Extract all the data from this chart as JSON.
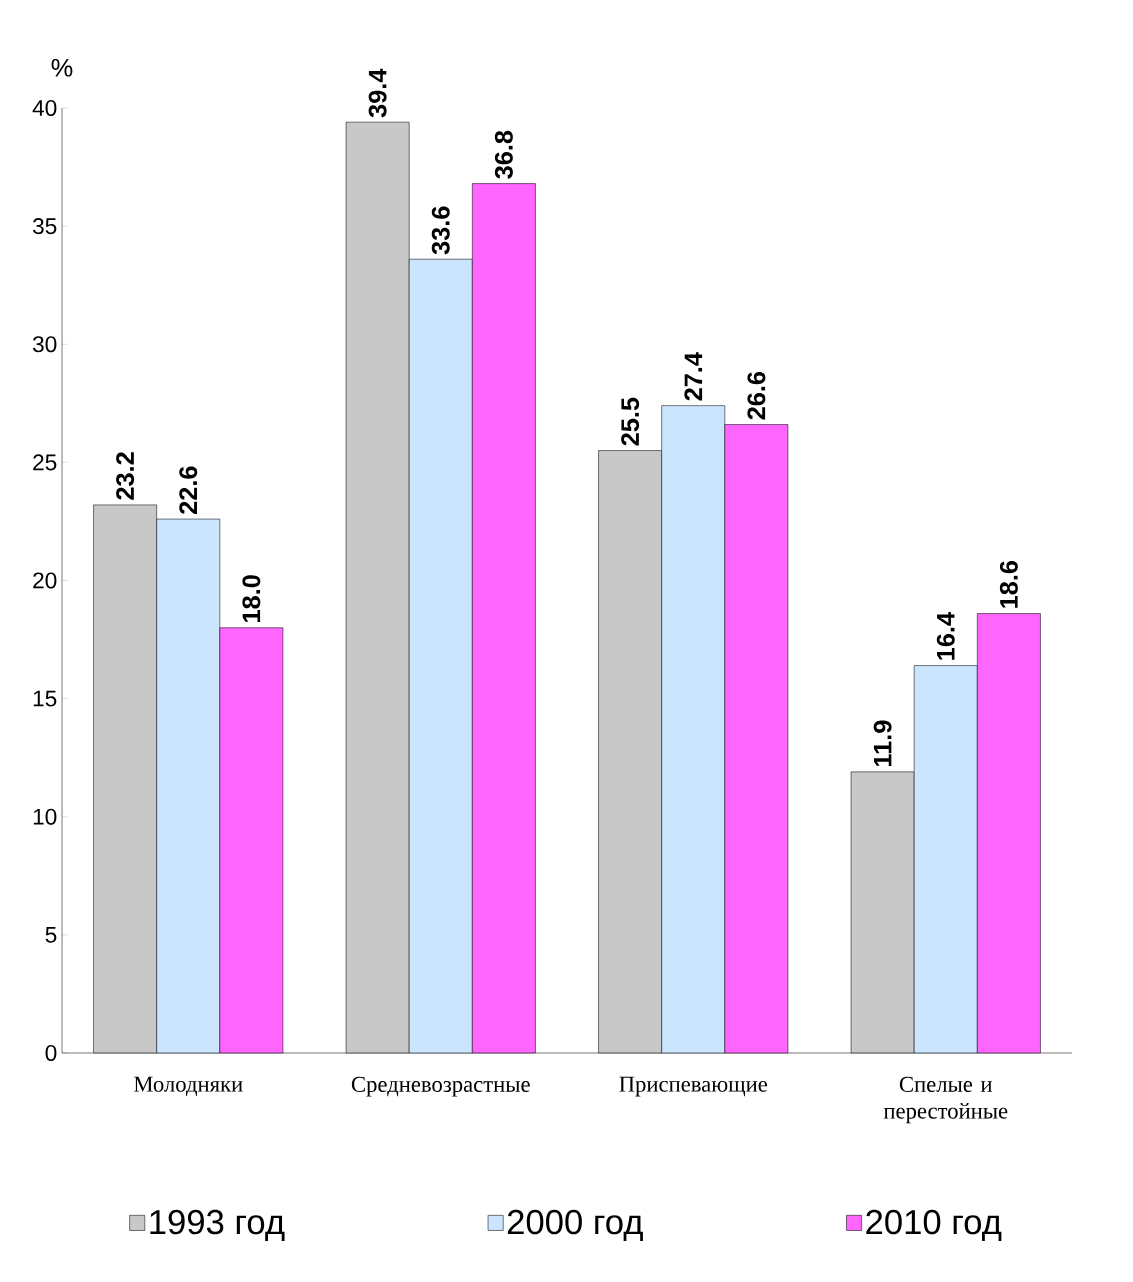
{
  "chart_data": {
    "type": "bar",
    "ylabel": "%",
    "categories": [
      "Молодняки",
      "Средневозрастные",
      "Приспевающие",
      "Спелые и перестойные"
    ],
    "series": [
      {
        "name": "1993 год",
        "color": "#c8c8c8",
        "values": [
          23.2,
          39.4,
          25.5,
          11.9
        ],
        "value_labels": [
          "23.2",
          "39.4",
          "25.5",
          "11.9"
        ]
      },
      {
        "name": "2000 год",
        "color": "#cce5ff",
        "values": [
          22.6,
          33.6,
          27.4,
          16.4
        ],
        "value_labels": [
          "22.6",
          "33.6",
          "27.4",
          "16.4"
        ]
      },
      {
        "name": "2010 год",
        "color": "#ff66ff",
        "values": [
          18.0,
          36.8,
          26.6,
          18.6
        ],
        "value_labels": [
          "18.0",
          "36.8",
          "26.6",
          "18.6"
        ]
      }
    ],
    "ylim": [
      0,
      40
    ],
    "yticks": [
      0,
      5,
      10,
      15,
      20,
      25,
      30,
      35,
      40
    ],
    "legend": "bottom"
  }
}
